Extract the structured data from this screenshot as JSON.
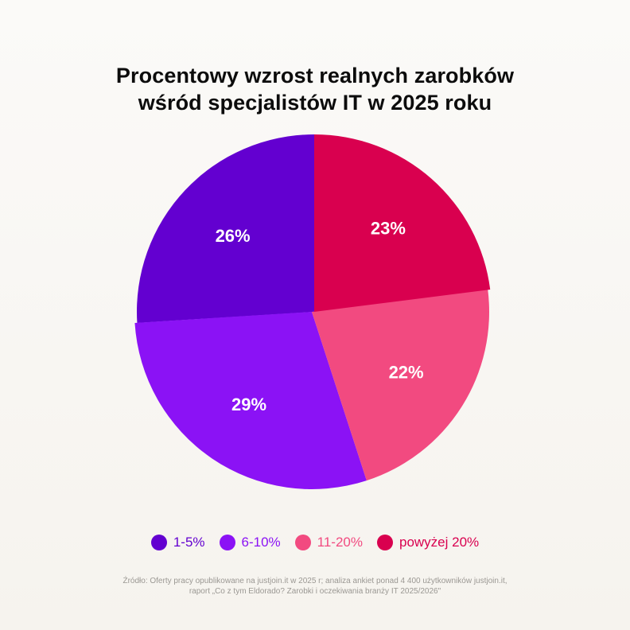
{
  "title": {
    "line1": "Procentowy wzrost realnych zarobków",
    "line2": "wśród specjalistów IT w 2025 roku"
  },
  "chart_data": {
    "type": "pie",
    "title": "Procentowy wzrost realnych zarobków wśród specjalistów IT w 2025 roku",
    "categories": [
      "1-5%",
      "6-10%",
      "11-20%",
      "powyżej 20%"
    ],
    "values": [
      26,
      29,
      22,
      23
    ],
    "labels": [
      "26%",
      "29%",
      "22%",
      "23%"
    ],
    "colors": [
      "#6300d0",
      "#8b12f5",
      "#f24a80",
      "#d9004f"
    ],
    "start": "12 o'clock",
    "direction": "counterclockwise",
    "legend": "bottom",
    "exploded_slices": [
      "1-5%",
      "powyżej 20%"
    ]
  },
  "legend": [
    {
      "label": "1-5%",
      "color": "#6300d0"
    },
    {
      "label": "6-10%",
      "color": "#8b12f5"
    },
    {
      "label": "11-20%",
      "color": "#f24a80"
    },
    {
      "label": "powyżej 20%",
      "color": "#d9004f"
    }
  ],
  "source": {
    "line1": "Źródło: Oferty pracy opublikowane na justjoin.it w 2025 r; analiza ankiet ponad 4 400 użytkowników justjoin.it,",
    "line2": "raport „Co z tym Eldorado? Zarobki i oczekiwania branży IT 2025/2026\""
  }
}
